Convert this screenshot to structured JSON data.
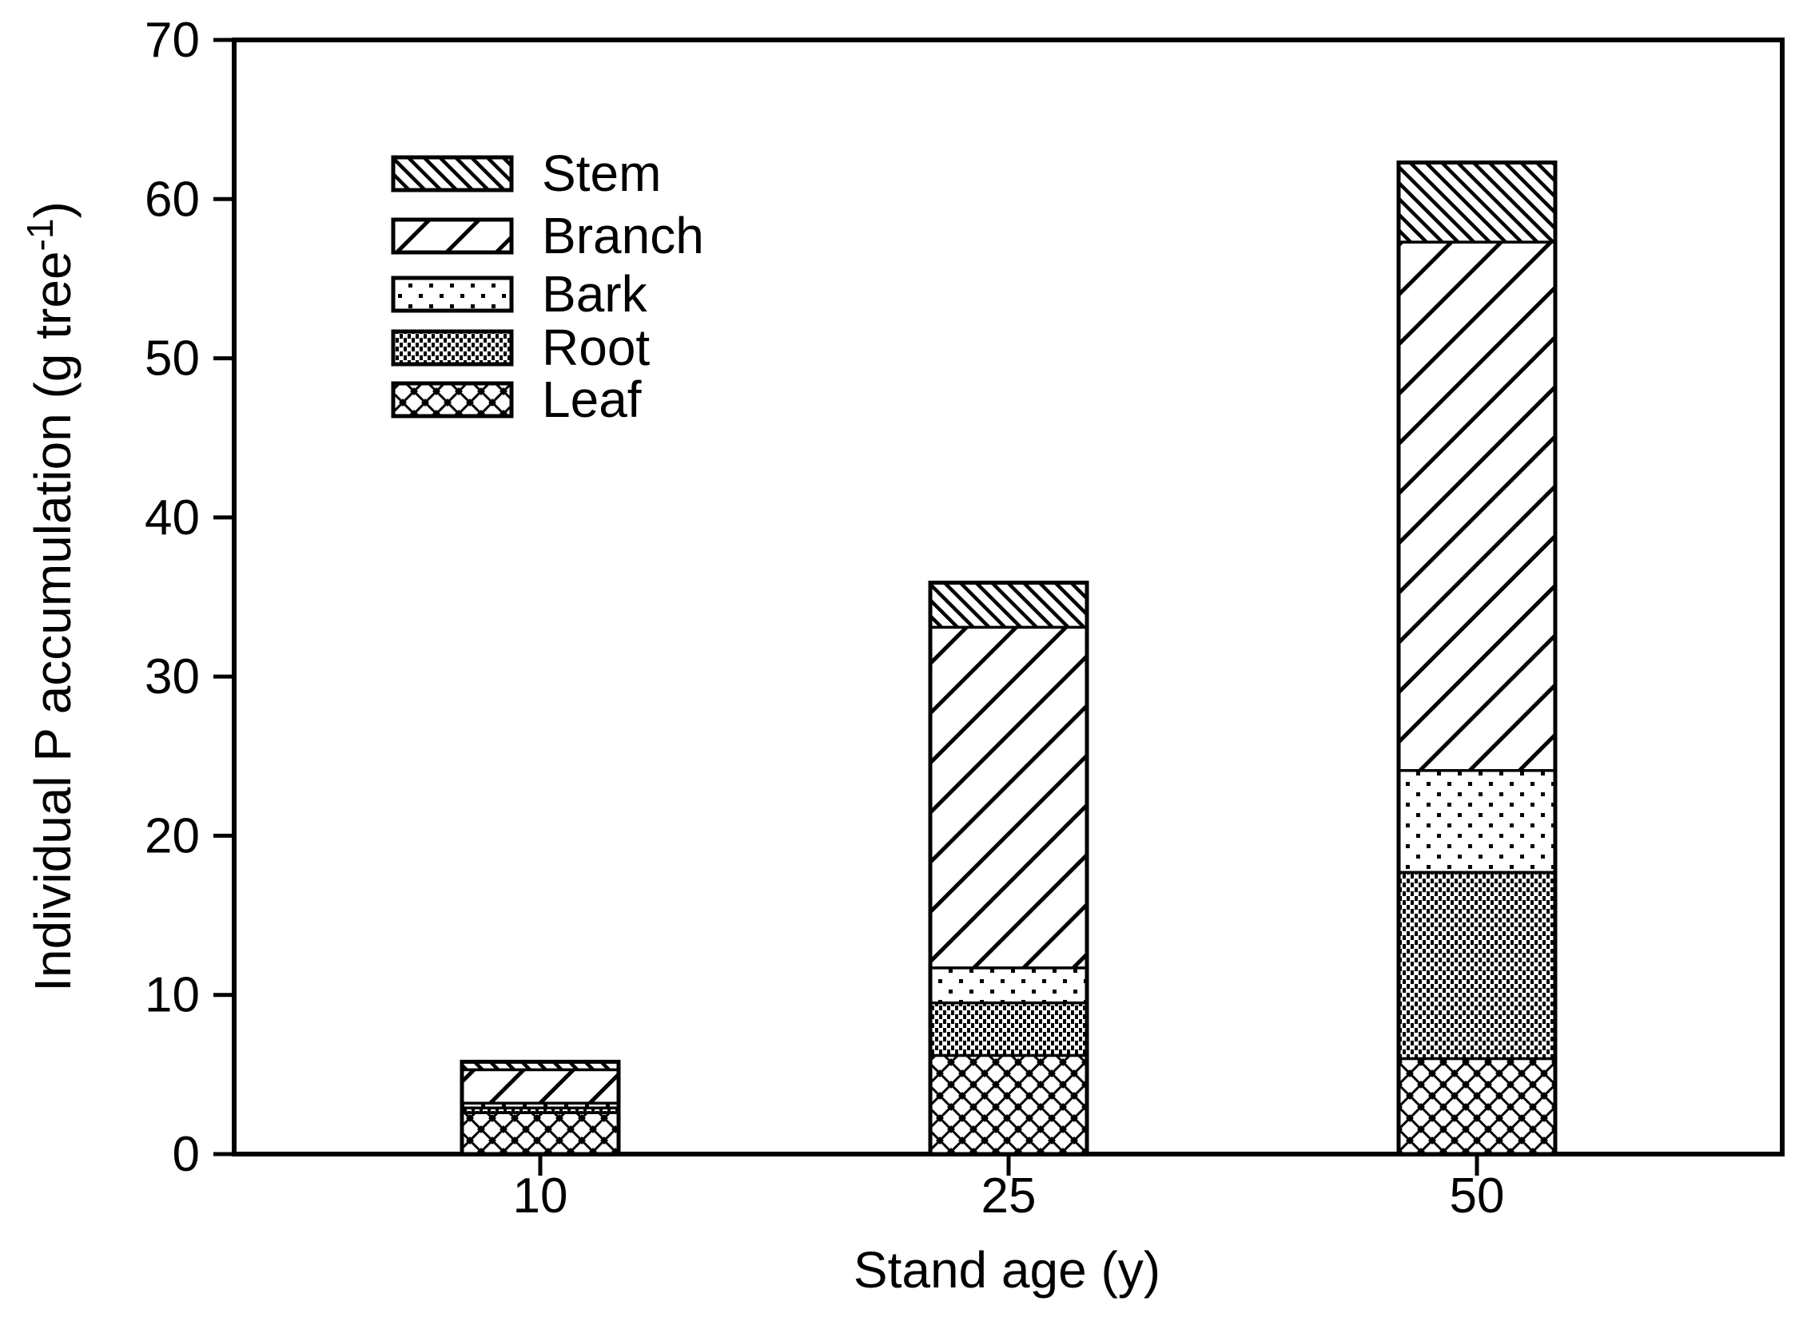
{
  "figure": {
    "background_color": "#ffffff",
    "ink_color": "#000000"
  },
  "chart_data": {
    "type": "bar",
    "stacked": true,
    "orientation": "vertical",
    "title": "",
    "xlabel": "Stand age (y)",
    "ylabel": "Individual P accumulation (g tree-1)",
    "ylabel_parts": {
      "main": "Individual P accumulation (g tree",
      "superscript": "-1",
      "suffix": ")"
    },
    "categories": [
      "10",
      "25",
      "50"
    ],
    "series": [
      {
        "name": "Leaf",
        "pattern": "leaf",
        "values": [
          2.6,
          6.2,
          6.0
        ]
      },
      {
        "name": "Root",
        "pattern": "root",
        "values": [
          0.3,
          3.3,
          11.7
        ]
      },
      {
        "name": "Bark",
        "pattern": "bark",
        "values": [
          0.3,
          2.2,
          6.4
        ]
      },
      {
        "name": "Branch",
        "pattern": "branch",
        "values": [
          2.1,
          21.4,
          33.2
        ]
      },
      {
        "name": "Stem",
        "pattern": "stem",
        "values": [
          0.5,
          2.8,
          5.0
        ]
      }
    ],
    "stack_order_bottom_to_top": [
      "Leaf",
      "Root",
      "Bark",
      "Branch",
      "Stem"
    ],
    "totals": [
      5.8,
      35.9,
      62.3
    ],
    "ylim": [
      0,
      70
    ],
    "yticks": [
      0,
      10,
      20,
      30,
      40,
      50,
      60,
      70
    ],
    "grid": false,
    "frame": "full-box",
    "legend": {
      "position": "upper-left-inside",
      "items": [
        {
          "label": "Stem",
          "pattern": "stem"
        },
        {
          "label": "Branch",
          "pattern": "branch"
        },
        {
          "label": "Bark",
          "pattern": "bark"
        },
        {
          "label": "Root",
          "pattern": "root"
        },
        {
          "label": "Leaf",
          "pattern": "leaf"
        }
      ]
    }
  }
}
